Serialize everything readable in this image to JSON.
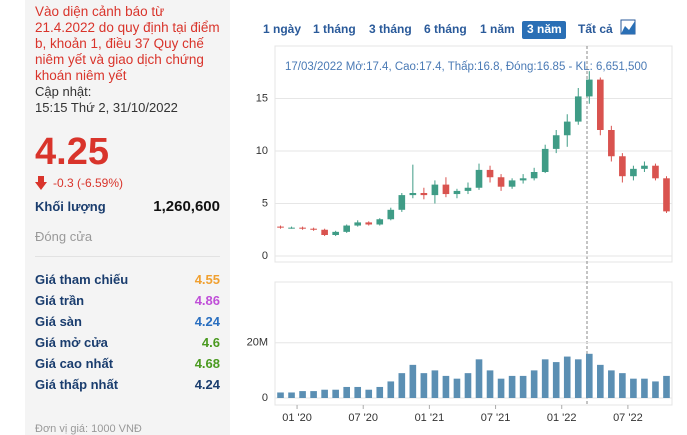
{
  "quote": {
    "warning": "Vào diện cảnh báo từ 21.4.2022 do quy định tại điểm b, khoản 1, điều 37 Quy chế niêm yết và giao dịch chứng khoán niêm yết",
    "update_label": "Cập nhật:",
    "update_time": "15:15 Thứ 2, 31/10/2022",
    "price": "4.25",
    "change": "-0.3 (-6.59%)",
    "volume_label": "Khối lượng",
    "volume": "1,260,600",
    "status": "Đóng cửa",
    "stats": [
      {
        "label": "Giá tham chiếu",
        "value": "4.55",
        "color": "#f0a030"
      },
      {
        "label": "Giá trần",
        "value": "4.86",
        "color": "#c04fd8"
      },
      {
        "label": "Giá sàn",
        "value": "4.24",
        "color": "#2a6fc0"
      },
      {
        "label": "Giá mở cửa",
        "value": "4.6",
        "color": "#4a9a20"
      },
      {
        "label": "Giá cao nhất",
        "value": "4.68",
        "color": "#4a9a20"
      },
      {
        "label": "Giá thấp nhất",
        "value": "4.24",
        "color": "#1a3d6e"
      }
    ],
    "unit": "Đơn vị giá: 1000 VNĐ"
  },
  "ranges": {
    "buttons": [
      "1 ngày",
      "1 tháng",
      "3 tháng",
      "6 tháng",
      "1 năm",
      "3 năm",
      "Tất cả"
    ],
    "active": 5
  },
  "chart_data": {
    "type": "candlestick",
    "tooltip": "17/03/2022 Mở:17.4, Cao:17.4, Thấp:16.8, Đóng:16.85 - KL: 6,651,500",
    "x": [
      "2019-11",
      "2019-12",
      "2020-01",
      "2020-02",
      "2020-03",
      "2020-04",
      "2020-05",
      "2020-06",
      "2020-07",
      "2020-08",
      "2020-09",
      "2020-10",
      "2020-11",
      "2020-12",
      "2021-01",
      "2021-02",
      "2021-03",
      "2021-04",
      "2021-05",
      "2021-06",
      "2021-07",
      "2021-08",
      "2021-09",
      "2021-10",
      "2021-11",
      "2021-12",
      "2022-01",
      "2022-02",
      "2022-03",
      "2022-04",
      "2022-05",
      "2022-06",
      "2022-07",
      "2022-08",
      "2022-09",
      "2022-10"
    ],
    "open": [
      2.8,
      2.7,
      2.7,
      2.6,
      2.5,
      2.0,
      2.3,
      2.9,
      3.2,
      3.0,
      3.5,
      4.4,
      5.8,
      6.0,
      5.8,
      6.8,
      5.9,
      6.2,
      6.5,
      8.2,
      7.5,
      6.6,
      7.2,
      7.4,
      8.0,
      10.2,
      11.5,
      12.8,
      15.2,
      16.8,
      12.0,
      9.5,
      7.6,
      8.3,
      8.6,
      7.4
    ],
    "high": [
      2.9,
      2.8,
      2.8,
      2.7,
      2.6,
      2.4,
      3.0,
      3.4,
      3.3,
      3.6,
      4.6,
      6.0,
      8.7,
      6.5,
      7.2,
      7.5,
      6.4,
      7.0,
      8.8,
      8.6,
      7.8,
      7.4,
      7.8,
      8.4,
      10.6,
      12.0,
      13.5,
      16.0,
      17.6,
      17.0,
      12.4,
      9.8,
      8.6,
      9.0,
      8.8,
      7.6
    ],
    "low": [
      2.6,
      2.6,
      2.5,
      2.4,
      1.9,
      1.9,
      2.2,
      2.8,
      2.9,
      2.9,
      3.4,
      4.2,
      5.5,
      5.4,
      5.0,
      5.6,
      5.5,
      5.9,
      6.3,
      7.0,
      6.2,
      6.4,
      6.9,
      7.2,
      7.9,
      9.8,
      10.4,
      12.5,
      14.5,
      11.5,
      9.0,
      7.0,
      7.2,
      8.0,
      7.2,
      4.1
    ],
    "close": [
      2.7,
      2.7,
      2.6,
      2.5,
      2.0,
      2.3,
      2.9,
      3.2,
      3.0,
      3.5,
      4.4,
      5.8,
      6.0,
      5.8,
      6.8,
      5.9,
      6.2,
      6.5,
      8.2,
      7.5,
      6.6,
      7.2,
      7.4,
      8.0,
      10.2,
      11.5,
      12.8,
      15.2,
      16.8,
      12.0,
      9.5,
      7.6,
      8.3,
      8.6,
      7.4,
      4.25
    ],
    "volume": [
      2000000,
      2000000,
      2500000,
      2500000,
      3000000,
      3000000,
      4000000,
      4000000,
      3000000,
      4000000,
      6000000,
      9000000,
      12000000,
      9000000,
      10000000,
      8000000,
      7000000,
      9000000,
      14000000,
      10000000,
      7000000,
      8000000,
      8000000,
      10000000,
      14000000,
      13000000,
      15000000,
      14000000,
      16000000,
      12000000,
      10000000,
      9000000,
      7000000,
      7000000,
      6000000,
      8000000
    ],
    "up_color": "#3f9c86",
    "down_color": "#d9534f",
    "volume_color": "#5b8fb3",
    "xlim": [
      "2019-11",
      "2022-11"
    ],
    "xticks": [
      {
        "value": "2020-01",
        "label": "01 '20"
      },
      {
        "value": "2020-07",
        "label": "07 '20"
      },
      {
        "value": "2021-01",
        "label": "01 '21"
      },
      {
        "value": "2021-07",
        "label": "07 '21"
      },
      {
        "value": "2022-01",
        "label": "01 '22"
      },
      {
        "value": "2022-07",
        "label": "07 '22"
      }
    ],
    "ylim": [
      0,
      20
    ],
    "yticks": [
      0,
      5,
      10,
      15
    ],
    "y2lim": [
      0,
      42000000
    ],
    "y2ticks": [
      0,
      {
        "value": 20000000,
        "label": "20M"
      }
    ],
    "grid": true
  }
}
